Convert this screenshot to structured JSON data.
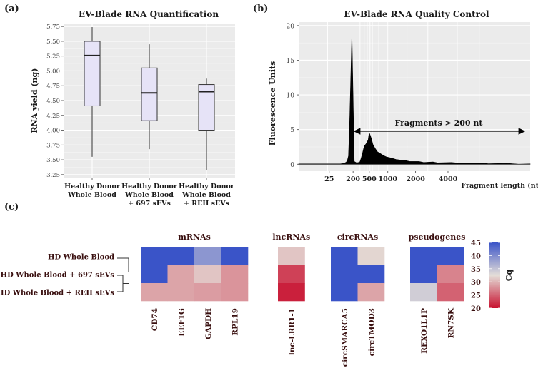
{
  "panel_labels": [
    "(a)",
    "(b)",
    "(c)"
  ],
  "chart_data": [
    {
      "type": "boxplot",
      "title": "EV-Blade RNA Quantification",
      "ylabel": "RNA yield (ng)",
      "ylim": [
        3.2,
        5.8
      ],
      "yticks": [
        3.25,
        3.5,
        3.75,
        4.0,
        4.25,
        4.5,
        4.75,
        5.0,
        5.25,
        5.5,
        5.75
      ],
      "ytick_labels": [
        "3.25",
        "3.50",
        "3.75",
        "4.00",
        "4.25",
        "4.50",
        "4.75",
        "5.00",
        "5.25",
        "5.50",
        "5.75"
      ],
      "box_color": "#e6e3f7",
      "categories": [
        {
          "lines": [
            "Healthy Donor",
            "Whole Blood"
          ],
          "min": 3.55,
          "q1": 4.41,
          "median": 5.26,
          "q3": 5.5,
          "max": 5.74
        },
        {
          "lines": [
            "Healthy Donor",
            "Whole Blood",
            "+ 697 sEVs"
          ],
          "min": 3.68,
          "q1": 4.16,
          "median": 4.63,
          "q3": 5.05,
          "max": 5.45
        },
        {
          "lines": [
            "Healthy Donor",
            "Whole Blood",
            "+ REH sEVs"
          ],
          "min": 3.32,
          "q1": 4.0,
          "median": 4.65,
          "q3": 4.77,
          "max": 4.87
        }
      ]
    },
    {
      "type": "line",
      "title": "EV-Blade RNA Quality Control",
      "ylabel": "Fluorescence Units",
      "xlabel": "Fragment length (nt)",
      "ylim": [
        -1,
        20.5
      ],
      "yticks": [
        0,
        5,
        10,
        15,
        20
      ],
      "x_ticks": [
        "25",
        "200",
        "500",
        "1000",
        "2000",
        "4000"
      ],
      "annotation": "Fragments > 200 nt",
      "series": [
        {
          "name": "electropherogram",
          "x": [
            0,
            3,
            6,
            10,
            14,
            18,
            19,
            20,
            20.5,
            21,
            21.5,
            22,
            23,
            24,
            25,
            25.3,
            25.6,
            26,
            26.3,
            26.6,
            27,
            27.5,
            28,
            28.5,
            29,
            29.5,
            30,
            30.3,
            30.6,
            31,
            31.5,
            32,
            33,
            34,
            35,
            36,
            37,
            38,
            40,
            42,
            44,
            46,
            48,
            50,
            52,
            54,
            56,
            58,
            60,
            63,
            66,
            70,
            74,
            78,
            82,
            86,
            90,
            95,
            100
          ],
          "y": [
            0.05,
            0.05,
            0.05,
            0.05,
            0.05,
            0.05,
            0.1,
            0.2,
            0.3,
            0.5,
            1.2,
            6.0,
            19.0,
            0.4,
            0.2,
            0.25,
            0.2,
            0.3,
            0.25,
            0.5,
            0.9,
            1.5,
            2.2,
            2.7,
            2.9,
            3.2,
            3.5,
            4.2,
            4.45,
            4.1,
            3.6,
            2.9,
            2.3,
            1.8,
            1.6,
            1.4,
            1.2,
            1.05,
            0.9,
            0.75,
            0.6,
            0.5,
            0.45,
            0.4,
            0.35,
            0.3,
            0.3,
            0.28,
            0.25,
            0.22,
            0.2,
            0.18,
            0.16,
            0.14,
            0.12,
            0.1,
            0.08,
            0.06,
            0.05
          ]
        }
      ]
    },
    {
      "type": "heatmap",
      "colorbar_label": "Cq",
      "colorbar_ticks": [
        20,
        25,
        30,
        35,
        40,
        45
      ],
      "color_scale": {
        "low": "#c8102e",
        "mid": "#e4ded8",
        "high": "#3a54c8",
        "min": 20,
        "max": 45
      },
      "rows": [
        "HD Whole Blood",
        "HD Whole Blood + 697 sEVs",
        "HD Whole Blood + REH sEVs"
      ],
      "groups": [
        {
          "name": "mRNAs",
          "genes": [
            "CD74",
            "EEF1G",
            "GAPDH",
            "RPL19"
          ],
          "values": [
            [
              45,
              45,
              39,
              45
            ],
            [
              45,
              29,
              31,
              28
            ],
            [
              29,
              29,
              28.5,
              28
            ]
          ]
        },
        {
          "name": "lncRNAs",
          "genes": [
            "lnc-LRR1-1"
          ],
          "values": [
            [
              31
            ],
            [
              23
            ],
            [
              21
            ]
          ]
        },
        {
          "name": "circRNAs",
          "genes": [
            "circSMARCA5",
            "circTMOD3"
          ],
          "values": [
            [
              45,
              32
            ],
            [
              45,
              45
            ],
            [
              45,
              29
            ]
          ]
        },
        {
          "name": "pseudogenes",
          "genes": [
            "REXO1L1P",
            "RN7SK"
          ],
          "values": [
            [
              45,
              45
            ],
            [
              45,
              27
            ],
            [
              34,
              25
            ]
          ]
        }
      ]
    }
  ]
}
